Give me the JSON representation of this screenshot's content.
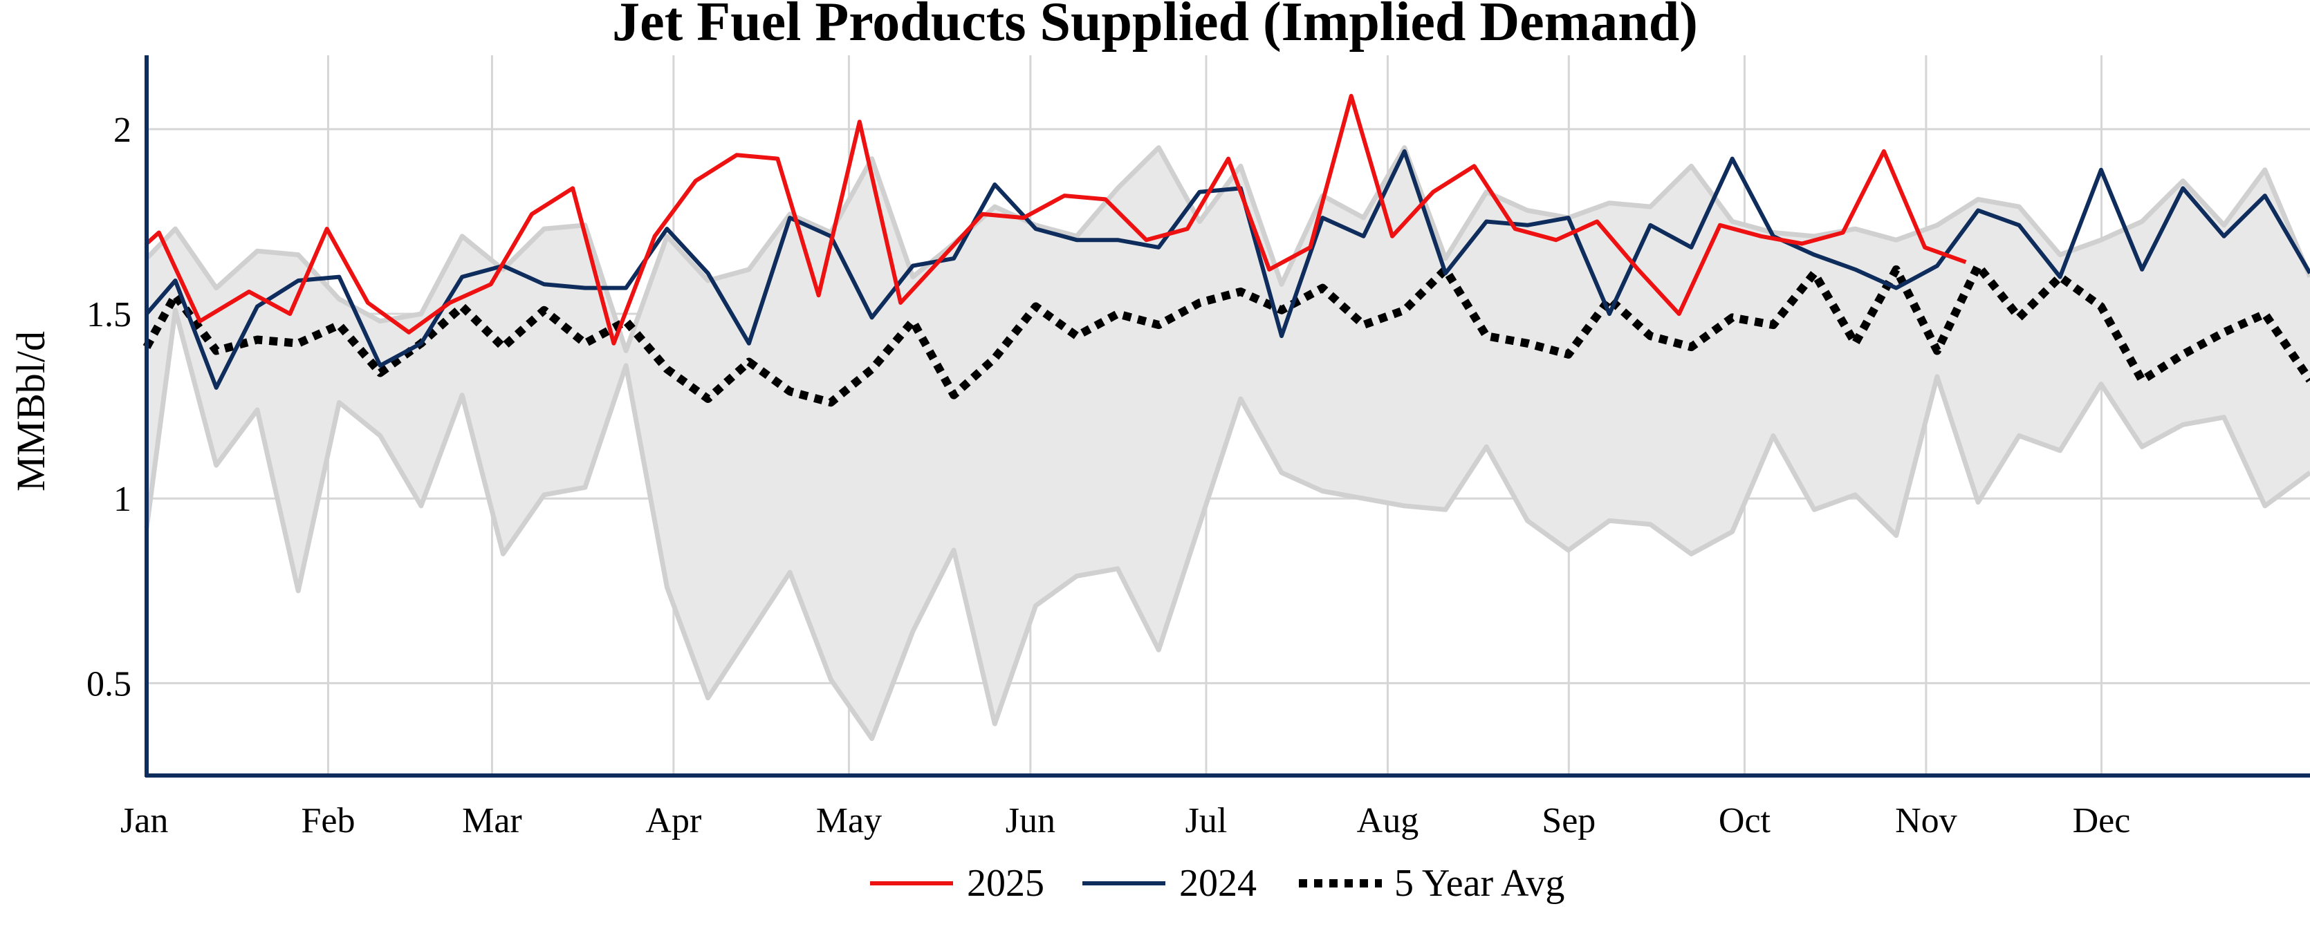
{
  "chart_data": {
    "type": "line",
    "title": "Jet Fuel Products Supplied (Implied Demand)",
    "xlabel": "",
    "ylabel": "MMBbl/d",
    "x_tick_labels": [
      "Jan",
      "Feb",
      "Mar",
      "Apr",
      "May",
      "Jun",
      "Jul",
      "Aug",
      "Sep",
      "Oct",
      "Nov",
      "Dec"
    ],
    "y_tick_labels": [
      "0.5",
      "1",
      "1.5",
      "2"
    ],
    "y_ticks": [
      0.5,
      1,
      1.5,
      2
    ],
    "xlim": [
      1,
      53.8
    ],
    "ylim": [
      0.25,
      2.2
    ],
    "grid": true,
    "legend_position": "bottom-center",
    "colors": {
      "s2025": "#ee1111",
      "s2024": "#0f2d5c",
      "avg": "#000000",
      "range_fill": "#e8e8e8",
      "range_edge": "#d0d0d0",
      "grid": "#d6d6d6",
      "axis": "#0f2d5c"
    },
    "series": [
      {
        "name": "2025",
        "x": [
          1,
          1.3,
          2.3,
          3.5,
          4.5,
          5.4,
          6.4,
          7.4,
          8.4,
          9.4,
          10.4,
          11.4,
          12.4,
          13.4,
          14.4,
          15.4,
          16.4,
          17.4,
          18.4,
          19.4,
          20.4,
          21.4,
          22.4,
          23.4,
          24.4,
          25.4,
          26.4,
          27.4,
          28.4,
          29.4,
          30.4,
          31.4,
          32.4,
          33.4,
          34.4,
          35.4,
          36.4,
          37.4,
          38.4,
          39.4,
          40.4,
          41.4,
          42.4,
          43.4,
          44.4,
          45.4
        ],
        "y": [
          1.69,
          1.72,
          1.48,
          1.56,
          1.5,
          1.73,
          1.53,
          1.45,
          1.53,
          1.58,
          1.77,
          1.84,
          1.42,
          1.71,
          1.86,
          1.93,
          1.92,
          1.55,
          2.02,
          1.53,
          1.65,
          1.77,
          1.76,
          1.82,
          1.81,
          1.7,
          1.73,
          1.92,
          1.62,
          1.68,
          2.09,
          1.71,
          1.83,
          1.9,
          1.73,
          1.7,
          1.75,
          1.62,
          1.5,
          1.74,
          1.71,
          1.69,
          1.72,
          1.94,
          1.68,
          1.64
        ]
      },
      {
        "name": "2024",
        "x": [
          1,
          1.7,
          2.7,
          3.7,
          4.7,
          5.7,
          6.7,
          7.7,
          8.7,
          9.7,
          10.7,
          11.7,
          12.7,
          13.7,
          14.7,
          15.7,
          16.7,
          17.7,
          18.7,
          19.7,
          20.7,
          21.7,
          22.7,
          23.7,
          24.7,
          25.7,
          26.7,
          27.7,
          28.7,
          29.7,
          30.7,
          31.7,
          32.7,
          33.7,
          34.7,
          35.7,
          36.7,
          37.7,
          38.7,
          39.7,
          40.7,
          41.7,
          42.7,
          43.7,
          44.7,
          45.7,
          46.7,
          47.7,
          48.7,
          49.7,
          50.7,
          51.7,
          52.7,
          53.8
        ],
        "y": [
          1.5,
          1.59,
          1.3,
          1.52,
          1.59,
          1.6,
          1.36,
          1.42,
          1.6,
          1.63,
          1.58,
          1.57,
          1.57,
          1.73,
          1.61,
          1.42,
          1.76,
          1.71,
          1.49,
          1.63,
          1.65,
          1.85,
          1.73,
          1.7,
          1.7,
          1.68,
          1.83,
          1.84,
          1.44,
          1.76,
          1.71,
          1.94,
          1.61,
          1.75,
          1.74,
          1.76,
          1.5,
          1.74,
          1.68,
          1.92,
          1.71,
          1.66,
          1.62,
          1.57,
          1.63,
          1.78,
          1.74,
          1.6,
          1.89,
          1.62,
          1.84,
          1.71,
          1.82,
          1.61
        ]
      },
      {
        "name": "5 Year Avg",
        "x": [
          1,
          1.7,
          2.7,
          3.7,
          4.7,
          5.7,
          6.7,
          7.7,
          8.7,
          9.7,
          10.7,
          11.7,
          12.7,
          13.7,
          14.7,
          15.7,
          16.7,
          17.7,
          18.7,
          19.7,
          20.7,
          21.7,
          22.7,
          23.7,
          24.7,
          25.7,
          26.7,
          27.7,
          28.7,
          29.7,
          30.7,
          31.7,
          32.7,
          33.7,
          34.7,
          35.7,
          36.7,
          37.7,
          38.7,
          39.7,
          40.7,
          41.7,
          42.7,
          43.7,
          44.7,
          45.7,
          46.7,
          47.7,
          48.7,
          49.7,
          50.7,
          51.7,
          52.7,
          53.8
        ],
        "y": [
          1.41,
          1.55,
          1.4,
          1.43,
          1.42,
          1.47,
          1.34,
          1.42,
          1.52,
          1.41,
          1.51,
          1.42,
          1.48,
          1.35,
          1.27,
          1.37,
          1.29,
          1.26,
          1.35,
          1.48,
          1.28,
          1.38,
          1.52,
          1.44,
          1.5,
          1.47,
          1.53,
          1.56,
          1.51,
          1.57,
          1.47,
          1.51,
          1.62,
          1.44,
          1.42,
          1.39,
          1.54,
          1.44,
          1.41,
          1.49,
          1.47,
          1.61,
          1.42,
          1.62,
          1.4,
          1.63,
          1.49,
          1.6,
          1.52,
          1.32,
          1.39,
          1.45,
          1.5,
          1.32
        ]
      }
    ],
    "range_band": {
      "x": [
        1,
        1.7,
        2.7,
        3.7,
        4.7,
        5.7,
        6.7,
        7.7,
        8.7,
        9.7,
        10.7,
        11.7,
        12.7,
        13.7,
        14.7,
        15.7,
        16.7,
        17.7,
        18.7,
        19.7,
        20.7,
        21.7,
        22.7,
        23.7,
        24.7,
        25.7,
        26.7,
        27.7,
        28.7,
        29.7,
        30.7,
        31.7,
        32.7,
        33.7,
        34.7,
        35.7,
        36.7,
        37.7,
        38.7,
        39.7,
        40.7,
        41.7,
        42.7,
        43.7,
        44.7,
        45.7,
        46.7,
        47.7,
        48.7,
        49.7,
        50.7,
        51.7,
        52.7,
        53.8
      ],
      "max": [
        1.65,
        1.73,
        1.57,
        1.67,
        1.66,
        1.54,
        1.48,
        1.5,
        1.71,
        1.62,
        1.73,
        1.74,
        1.4,
        1.71,
        1.59,
        1.62,
        1.77,
        1.72,
        1.92,
        1.6,
        1.69,
        1.79,
        1.74,
        1.71,
        1.84,
        1.95,
        1.75,
        1.9,
        1.58,
        1.82,
        1.76,
        1.95,
        1.65,
        1.83,
        1.78,
        1.76,
        1.8,
        1.79,
        1.9,
        1.75,
        1.72,
        1.71,
        1.73,
        1.7,
        1.74,
        1.81,
        1.79,
        1.66,
        1.7,
        1.75,
        1.86,
        1.74,
        1.89,
        1.6
      ],
      "min": [
        0.92,
        1.51,
        1.09,
        1.24,
        0.75,
        1.26,
        1.17,
        0.98,
        1.28,
        0.85,
        1.01,
        1.03,
        1.36,
        0.76,
        0.46,
        0.63,
        0.8,
        0.51,
        0.35,
        0.64,
        0.86,
        0.39,
        0.71,
        0.79,
        0.81,
        0.59,
        0.93,
        1.27,
        1.07,
        1.02,
        1.0,
        0.98,
        0.97,
        1.14,
        0.94,
        0.86,
        0.94,
        0.93,
        0.85,
        0.91,
        1.17,
        0.97,
        1.01,
        0.9,
        1.33,
        0.99,
        1.17,
        1.13,
        1.31,
        1.14,
        1.2,
        1.22,
        0.98,
        1.07
      ]
    }
  }
}
